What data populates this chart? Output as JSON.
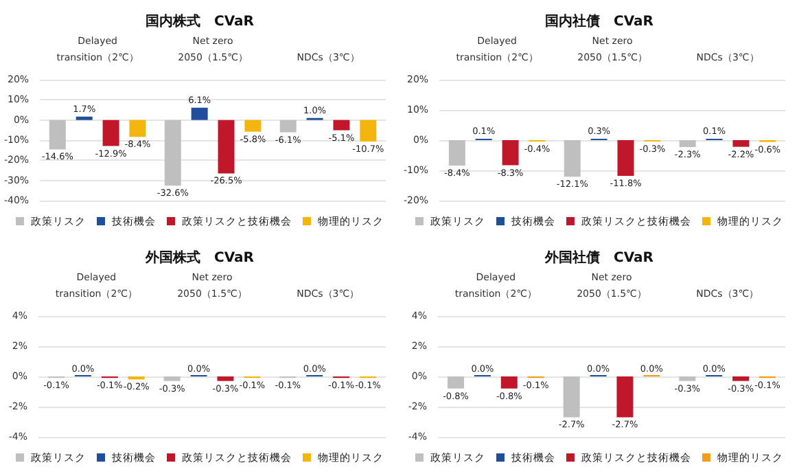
{
  "chart_data": [
    {
      "type": "bar",
      "title": "国内株式　CVaR",
      "categories": [
        "Delayed\ntransition（2℃）",
        "Net zero\n2050（1.5℃）",
        "NDCs（3℃）"
      ],
      "ylim": [
        -40,
        20
      ],
      "yticks": [
        {
          "value": -40,
          "label": "-40%"
        },
        {
          "value": -30,
          "label": "-30%"
        },
        {
          "value": -20,
          "label": "-20%"
        },
        {
          "value": -10,
          "label": "-10%"
        },
        {
          "value": 0,
          "label": "0%"
        },
        {
          "value": 10,
          "label": "10%"
        },
        {
          "value": 20,
          "label": "20%"
        }
      ],
      "grid": "y",
      "legend": "bottom",
      "series": [
        {
          "name": "政策リスク",
          "color": "#bfbfbf",
          "values": [
            -14.6,
            -32.6,
            -6.1
          ],
          "value_labels": [
            "-14.6%",
            "-32.6%",
            "-6.1%"
          ]
        },
        {
          "name": "技術機会",
          "color": "#1f4e9c",
          "values": [
            1.7,
            6.1,
            1.0
          ],
          "value_labels": [
            "1.7%",
            "6.1%",
            "1.0%"
          ]
        },
        {
          "name": "政策リスクと技術機会",
          "color": "#c0182a",
          "values": [
            -12.9,
            -26.5,
            -5.1
          ],
          "value_labels": [
            "-12.9%",
            "-26.5%",
            "-5.1%"
          ]
        },
        {
          "name": "物理的リスク",
          "color": "#f5b50f",
          "values": [
            -8.4,
            -5.8,
            -10.7
          ],
          "value_labels": [
            "-8.4%",
            "-5.8%",
            "-10.7%"
          ]
        }
      ]
    },
    {
      "type": "bar",
      "title": "国内社債　CVaR",
      "categories": [
        "Delayed\ntransition（2℃）",
        "Net zero\n2050（1.5℃）",
        "NDCs（3℃）"
      ],
      "ylim": [
        -20,
        20
      ],
      "yticks": [
        {
          "value": -20,
          "label": "-20%"
        },
        {
          "value": -10,
          "label": "-10%"
        },
        {
          "value": 0,
          "label": "0%"
        },
        {
          "value": 10,
          "label": "10%"
        },
        {
          "value": 20,
          "label": "20%"
        }
      ],
      "grid": "y",
      "legend": "bottom",
      "series": [
        {
          "name": "政策リスク",
          "color": "#bfbfbf",
          "values": [
            -8.4,
            -12.1,
            -2.3
          ],
          "value_labels": [
            "-8.4%",
            "-12.1%",
            "-2.3%"
          ]
        },
        {
          "name": "技術機会",
          "color": "#1f4e9c",
          "values": [
            0.1,
            0.3,
            0.1
          ],
          "value_labels": [
            "0.1%",
            "0.3%",
            "0.1%"
          ]
        },
        {
          "name": "政策リスクと技術機会",
          "color": "#c0182a",
          "values": [
            -8.3,
            -11.8,
            -2.2
          ],
          "value_labels": [
            "-8.3%",
            "-11.8%",
            "-2.2%"
          ]
        },
        {
          "name": "物理的リスク",
          "color": "#f5b50f",
          "values": [
            -0.4,
            -0.3,
            -0.6
          ],
          "value_labels": [
            "-0.4%",
            "-0.3%",
            "-0.6%"
          ]
        }
      ]
    },
    {
      "type": "bar",
      "title": "外国株式　CVaR",
      "categories": [
        "Delayed\ntransition（2℃）",
        "Net zero\n2050（1.5℃）",
        "NDCs（3℃）"
      ],
      "ylim": [
        -4,
        4
      ],
      "yticks": [
        {
          "value": -4,
          "label": "-4%"
        },
        {
          "value": -2,
          "label": "-2%"
        },
        {
          "value": 0,
          "label": "0%"
        },
        {
          "value": 2,
          "label": "2%"
        },
        {
          "value": 4,
          "label": "4%"
        }
      ],
      "grid": "y",
      "legend": "bottom",
      "series": [
        {
          "name": "政策リスク",
          "color": "#bfbfbf",
          "values": [
            -0.1,
            -0.3,
            -0.1
          ],
          "value_labels": [
            "-0.1%",
            "-0.3%",
            "-0.1%"
          ]
        },
        {
          "name": "技術機会",
          "color": "#1f4e9c",
          "values": [
            0.0,
            0.0,
            0.0
          ],
          "value_labels": [
            "0.0%",
            "0.0%",
            "0.0%"
          ]
        },
        {
          "name": "政策リスクと技術機会",
          "color": "#c0182a",
          "values": [
            -0.1,
            -0.3,
            -0.1
          ],
          "value_labels": [
            "-0.1%",
            "-0.3%",
            "-0.1%"
          ]
        },
        {
          "name": "物理的リスク",
          "color": "#f5b50f",
          "values": [
            -0.2,
            -0.1,
            -0.1
          ],
          "value_labels": [
            "-0.2%",
            "-0.1%",
            "-0.1%"
          ]
        }
      ]
    },
    {
      "type": "bar",
      "title": "外国社債　CVaR",
      "categories": [
        "Delayed\ntransition（2℃）",
        "Net zero\n2050（1.5℃）",
        "NDCs（3℃）"
      ],
      "ylim": [
        -4,
        4
      ],
      "yticks": [
        {
          "value": -4,
          "label": "-4%"
        },
        {
          "value": -2,
          "label": "-2%"
        },
        {
          "value": 0,
          "label": "0%"
        },
        {
          "value": 2,
          "label": "2%"
        },
        {
          "value": 4,
          "label": "4%"
        }
      ],
      "grid": "y",
      "legend": "bottom",
      "series": [
        {
          "name": "政策リスク",
          "color": "#bfbfbf",
          "values": [
            -0.8,
            -2.7,
            -0.3
          ],
          "value_labels": [
            "-0.8%",
            "-2.7%",
            "-0.3%"
          ]
        },
        {
          "name": "技術機会",
          "color": "#1f4e9c",
          "values": [
            0.0,
            0.0,
            0.0
          ],
          "value_labels": [
            "0.0%",
            "0.0%",
            "0.0%"
          ]
        },
        {
          "name": "政策リスクと技術機会",
          "color": "#c0182a",
          "values": [
            -0.8,
            -2.7,
            -0.3
          ],
          "value_labels": [
            "-0.8%",
            "-2.7%",
            "-0.3%"
          ]
        },
        {
          "name": "物理的リスク",
          "color": "#f39c1a",
          "values": [
            -0.1,
            0.0,
            -0.1
          ],
          "value_labels": [
            "-0.1%",
            "0.0%",
            "-0.1%"
          ]
        }
      ]
    }
  ]
}
